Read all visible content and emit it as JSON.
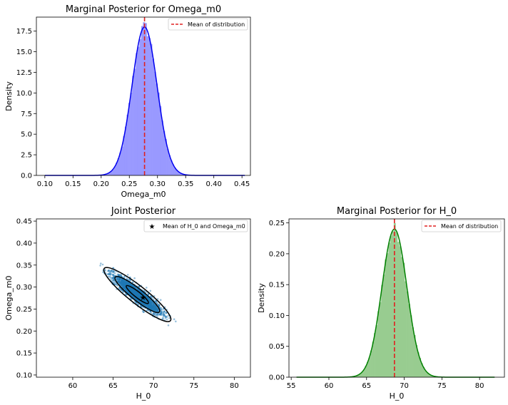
{
  "chart_data": [
    {
      "id": "omega",
      "type": "histogram+kde",
      "title": "Marginal Posterior for Omega_m0",
      "xlabel": "Omega_m0",
      "ylabel": "Density",
      "xlim": [
        0.085,
        0.465
      ],
      "ylim": [
        0,
        19.2
      ],
      "xticks": [
        "0.10",
        "0.15",
        "0.20",
        "0.25",
        "0.30",
        "0.35",
        "0.40",
        "0.45"
      ],
      "yticks": [
        "0.0",
        "2.5",
        "5.0",
        "7.5",
        "10.0",
        "12.5",
        "15.0",
        "17.5"
      ],
      "distribution": {
        "mean": 0.277,
        "std": 0.0222,
        "peak_density": 18.0,
        "range": [
          0.1,
          0.455
        ]
      },
      "mean_line": 0.277,
      "legend": {
        "label": "Mean of distribution",
        "position": "upper right"
      },
      "colors": {
        "hist": "#9999ff",
        "kde": "#0000ee",
        "mean": "#e02020"
      }
    },
    {
      "id": "joint",
      "type": "scatter",
      "title": "Joint Posterior",
      "xlabel": "H_0",
      "ylabel": "Omega_m0",
      "xlim": [
        55.5,
        82
      ],
      "ylim": [
        0.095,
        0.455
      ],
      "xticks": [
        "60",
        "65",
        "70",
        "75",
        "80"
      ],
      "yticks": [
        "0.10",
        "0.15",
        "0.20",
        "0.25",
        "0.30",
        "0.35",
        "0.40",
        "0.45"
      ],
      "mean": [
        68.7,
        0.277
      ],
      "ellipse_center": [
        68.0,
        0.283
      ],
      "ellipse_axis_ends": {
        "major": [
          63.9,
          0.3425
        ],
        "minor": [
          68.55,
          0.3
        ]
      },
      "sigma_levels": [
        1,
        2,
        3
      ],
      "legend": {
        "label": "Mean of H_0 and Omega_m0",
        "position": "upper right"
      },
      "colors": {
        "points": "#1f77b4",
        "contour": "#000000",
        "mean": "#000000"
      }
    },
    {
      "id": "h0",
      "type": "histogram+kde",
      "title": "Marginal Posterior for H_0",
      "xlabel": "H_0",
      "ylabel": "Density",
      "xlim": [
        54.7,
        83.3
      ],
      "ylim": [
        0,
        0.2565
      ],
      "xticks": [
        "55",
        "60",
        "65",
        "70",
        "75",
        "80"
      ],
      "yticks": [
        "0.00",
        "0.05",
        "0.10",
        "0.15",
        "0.20",
        "0.25"
      ],
      "distribution": {
        "mean": 68.7,
        "std": 1.66,
        "peak_density": 0.24,
        "range": [
          55.7,
          82.0
        ]
      },
      "mean_line": 68.7,
      "legend": {
        "label": "Mean of distribution",
        "position": "upper right"
      },
      "colors": {
        "hist": "#98cc90",
        "kde": "#008000",
        "mean": "#e02020"
      }
    }
  ]
}
